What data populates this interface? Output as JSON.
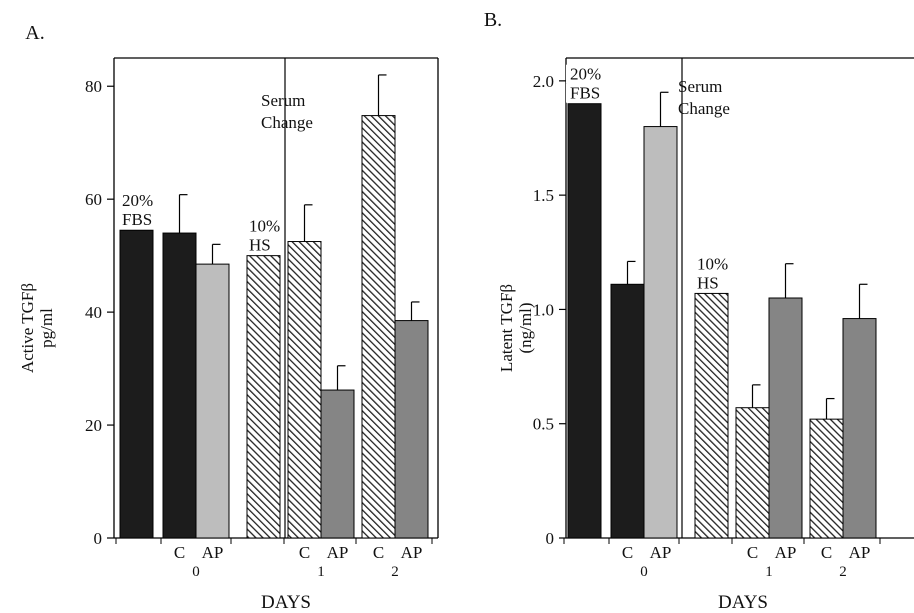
{
  "colors": {
    "solid_dark": "#1c1c1c",
    "light_gray": "#bdbdbd",
    "mid_gray": "#858585",
    "hatch_stroke": "#222222",
    "axis": "#000000"
  },
  "chart_data": [
    {
      "type": "bar",
      "panel_label": "A.",
      "title": "",
      "xlabel": "DAYS",
      "ylabel_lines": [
        "Active TGFβ",
        "pg/ml"
      ],
      "ylim": [
        0,
        85
      ],
      "yticks": [
        0,
        20,
        40,
        60,
        80
      ],
      "grid": false,
      "divider_after_bar": 3,
      "divider_label_lines": [
        "Serum",
        "Change"
      ],
      "bars": [
        {
          "fill": "solid_dark",
          "value": 54.5,
          "error": 0,
          "inner_label_lines": [
            "20%",
            "FBS"
          ]
        },
        {
          "fill": "solid_dark",
          "value": 54,
          "error": 6.8,
          "inner_label_lines": []
        },
        {
          "fill": "light_gray",
          "value": 48.5,
          "error": 3.5,
          "inner_label_lines": []
        },
        {
          "fill": "hatch",
          "value": 50,
          "error": 0,
          "inner_label_lines": [
            "10%",
            "HS"
          ]
        },
        {
          "fill": "hatch",
          "value": 52.5,
          "error": 6.5,
          "inner_label_lines": []
        },
        {
          "fill": "mid_gray",
          "value": 26.2,
          "error": 4.3,
          "inner_label_lines": []
        },
        {
          "fill": "hatch",
          "value": 74.8,
          "error": 7.2,
          "inner_label_lines": []
        },
        {
          "fill": "mid_gray",
          "value": 38.5,
          "error": 3.3,
          "inner_label_lines": []
        }
      ],
      "x_labels": [
        {
          "bar": 1,
          "text": "C"
        },
        {
          "bar": 2,
          "text": "AP"
        },
        {
          "between": [
            1,
            2
          ],
          "text": "0",
          "row": 2
        },
        {
          "bar": 4,
          "text": "C"
        },
        {
          "bar": 5,
          "text": "AP"
        },
        {
          "between": [
            4,
            5
          ],
          "text": "1",
          "row": 2
        },
        {
          "bar": 6,
          "text": "C"
        },
        {
          "bar": 7,
          "text": "AP"
        },
        {
          "between": [
            6,
            7
          ],
          "text": "2",
          "row": 2
        }
      ]
    },
    {
      "type": "bar",
      "panel_label": "B.",
      "title": "",
      "xlabel": "DAYS",
      "ylabel_lines": [
        "Latent TGFβ",
        "(ng/ml)"
      ],
      "ylim": [
        0,
        2.1
      ],
      "yticks": [
        0,
        0.5,
        1.0,
        1.5,
        2.0
      ],
      "ytick_labels": [
        "0",
        "0.5",
        "1.0",
        "1.5",
        "2.0"
      ],
      "grid": false,
      "divider_after_bar": 2,
      "divider_label_lines": [
        "Serum",
        "Change"
      ],
      "bars": [
        {
          "fill": "solid_dark",
          "value": 1.9,
          "error": 0,
          "inner_label_lines": [
            "20%",
            "FBS"
          ]
        },
        {
          "fill": "solid_dark",
          "value": 1.11,
          "error": 0.1,
          "inner_label_lines": []
        },
        {
          "fill": "light_gray",
          "value": 1.8,
          "error": 0.15,
          "inner_label_lines": []
        },
        {
          "fill": "hatch",
          "value": 1.07,
          "error": 0,
          "inner_label_lines": [
            "10%",
            "HS"
          ]
        },
        {
          "fill": "hatch",
          "value": 0.57,
          "error": 0.1,
          "inner_label_lines": []
        },
        {
          "fill": "mid_gray",
          "value": 1.05,
          "error": 0.15,
          "inner_label_lines": []
        },
        {
          "fill": "hatch",
          "value": 0.52,
          "error": 0.09,
          "inner_label_lines": []
        },
        {
          "fill": "mid_gray",
          "value": 0.96,
          "error": 0.15,
          "inner_label_lines": []
        }
      ],
      "x_labels": [
        {
          "bar": 1,
          "text": "C"
        },
        {
          "bar": 2,
          "text": "AP"
        },
        {
          "between": [
            1,
            2
          ],
          "text": "0",
          "row": 2
        },
        {
          "bar": 4,
          "text": "C"
        },
        {
          "bar": 5,
          "text": "AP"
        },
        {
          "between": [
            4,
            5
          ],
          "text": "1",
          "row": 2
        },
        {
          "bar": 6,
          "text": "C"
        },
        {
          "bar": 7,
          "text": "AP"
        },
        {
          "between": [
            6,
            7
          ],
          "text": "2",
          "row": 2
        }
      ]
    }
  ]
}
